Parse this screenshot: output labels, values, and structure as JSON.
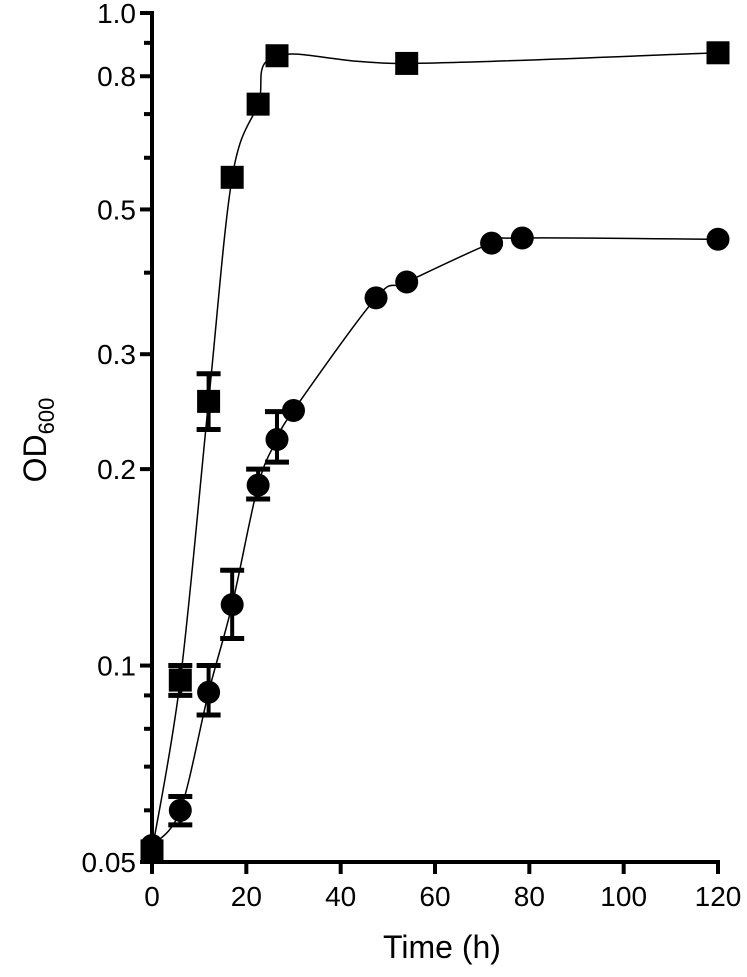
{
  "chart_data": {
    "type": "scatter",
    "title": "",
    "xlabel": "Time (h)",
    "ylabel": "OD",
    "ylabel_subscript": "600",
    "xlim": [
      0,
      120
    ],
    "ylim": [
      0.05,
      1.0
    ],
    "yscale": "log",
    "grid": false,
    "x_ticks": [
      0,
      20,
      40,
      60,
      80,
      100,
      120
    ],
    "y_ticks": [
      0.05,
      0.1,
      0.2,
      0.3,
      0.5,
      0.8,
      1.0
    ],
    "y_tick_labels": [
      "0.05",
      "0.1",
      "0.2",
      "0.3",
      "0.5",
      "0.8",
      "1.0"
    ],
    "y_minor_ticks": [
      0.06,
      0.07,
      0.08,
      0.09,
      0.4,
      0.6,
      0.7,
      0.9
    ],
    "series": [
      {
        "marker": "square",
        "color": "#000000",
        "points": [
          {
            "x": 0,
            "y": 0.052
          },
          {
            "x": 6,
            "y": 0.095,
            "err_low": 0.09,
            "err_high": 0.1
          },
          {
            "x": 12,
            "y": 0.254,
            "err_low": 0.23,
            "err_high": 0.28
          },
          {
            "x": 17,
            "y": 0.56
          },
          {
            "x": 22.5,
            "y": 0.725
          },
          {
            "x": 26.5,
            "y": 0.86
          },
          {
            "x": 54,
            "y": 0.837
          },
          {
            "x": 120,
            "y": 0.869
          }
        ]
      },
      {
        "marker": "circle",
        "color": "#000000",
        "points": [
          {
            "x": 0,
            "y": 0.053
          },
          {
            "x": 6,
            "y": 0.06,
            "err_low": 0.057,
            "err_high": 0.063
          },
          {
            "x": 12,
            "y": 0.091,
            "err_low": 0.084,
            "err_high": 0.1
          },
          {
            "x": 17,
            "y": 0.124,
            "err_low": 0.11,
            "err_high": 0.14
          },
          {
            "x": 22.5,
            "y": 0.189,
            "err_low": 0.18,
            "err_high": 0.2
          },
          {
            "x": 26.5,
            "y": 0.222,
            "err_low": 0.205,
            "err_high": 0.245
          },
          {
            "x": 30,
            "y": 0.246
          },
          {
            "x": 47.5,
            "y": 0.366
          },
          {
            "x": 54,
            "y": 0.387
          },
          {
            "x": 72,
            "y": 0.444
          },
          {
            "x": 78.5,
            "y": 0.452
          },
          {
            "x": 120,
            "y": 0.45
          }
        ]
      }
    ]
  }
}
